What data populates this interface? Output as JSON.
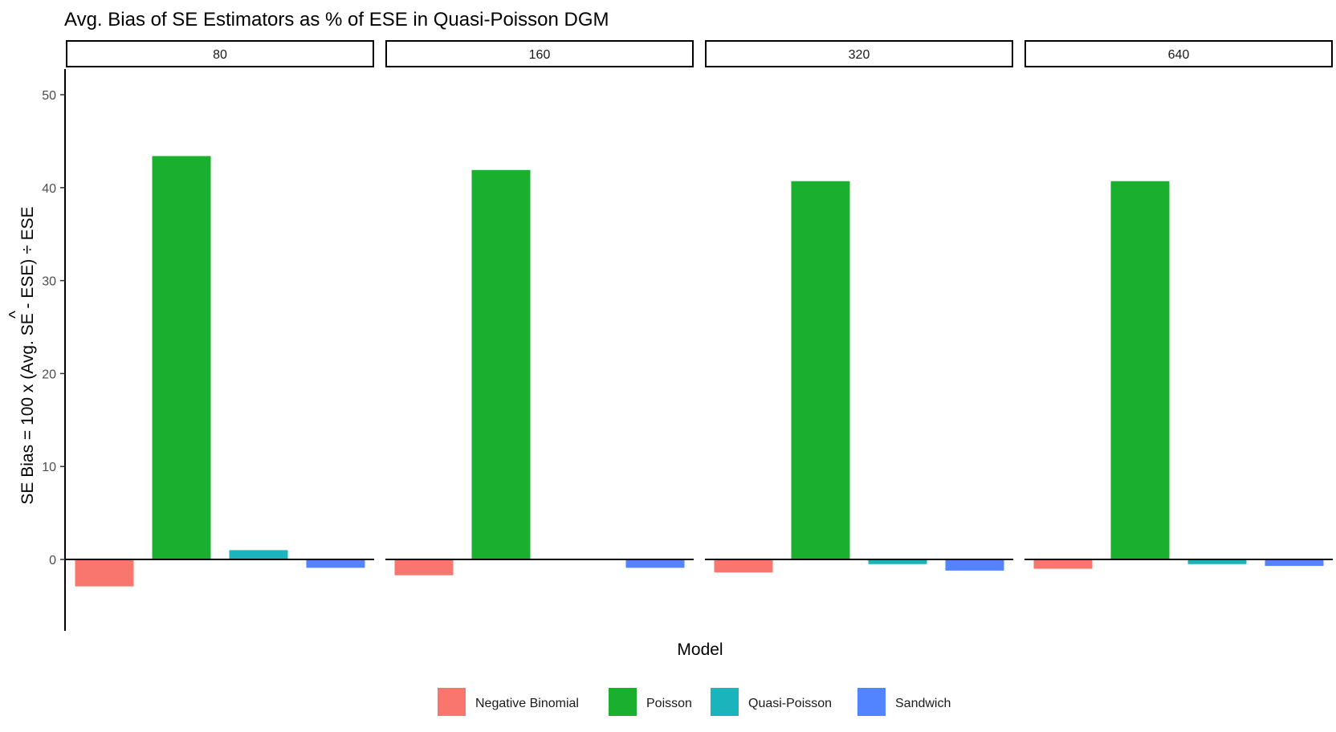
{
  "chart_data": {
    "type": "bar",
    "title": "Avg. Bias of SE Estimators as % of ESE in Quasi-Poisson DGM",
    "xlabel": "Model",
    "ylabel": "SE Bias = 100 x (Avg. SE - ESE) ÷ ESE",
    "ylabel_hat_char": "^",
    "ylim": [
      -7.8,
      52.8
    ],
    "yticks": [
      0,
      10,
      20,
      30,
      40,
      50
    ],
    "facets": [
      "80",
      "160",
      "320",
      "640"
    ],
    "categories": [
      "Negative Binomial",
      "Poisson",
      "Quasi-Poisson",
      "Sandwich"
    ],
    "colors": {
      "Negative Binomial": "#F8766D",
      "Poisson": "#1AAF2E",
      "Quasi-Poisson": "#1BB3BC",
      "Sandwich": "#5384FF"
    },
    "series": [
      {
        "facet": "80",
        "values": [
          -2.9,
          43.4,
          1.0,
          -0.9
        ]
      },
      {
        "facet": "160",
        "values": [
          -1.7,
          41.9,
          0.0,
          -0.9
        ]
      },
      {
        "facet": "320",
        "values": [
          -1.4,
          40.7,
          -0.5,
          -1.2
        ]
      },
      {
        "facet": "640",
        "values": [
          -1.0,
          40.7,
          -0.5,
          -0.7
        ]
      }
    ],
    "legend_position": "bottom",
    "grid": false
  }
}
